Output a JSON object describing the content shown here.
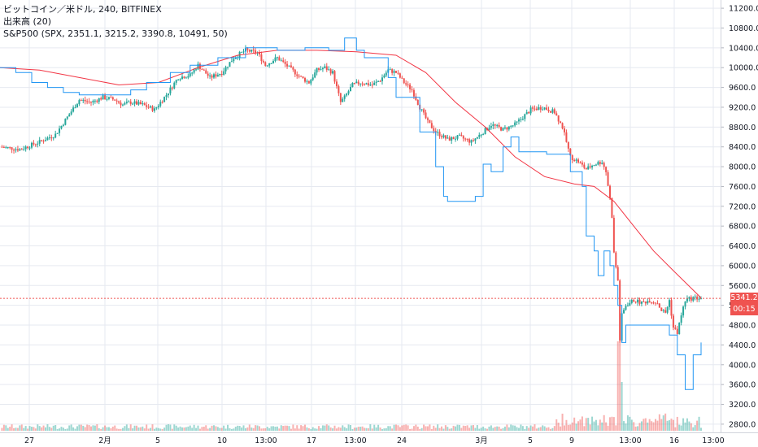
{
  "legend": {
    "symbol": "ビットコイン／米ドル, 240, BITFINEX",
    "volume": "出来高 (20)",
    "compare": "S&P500 (SPX, 2351.1, 3215.2, 3390.8, 10491, 50)"
  },
  "price_tag": {
    "value": "5341.2",
    "countdown": "00:15"
  },
  "colors": {
    "up": "#26a69a",
    "down": "#ef5350",
    "ma": "#f23645",
    "spx": "#2196f3",
    "grid": "#e6e9f0",
    "price_line": "#ef5350"
  },
  "chart_data": {
    "type": "candlestick",
    "y_axis": {
      "range": [
        2700,
        11300
      ],
      "ticks": [
        "2800.0",
        "3200.0",
        "3600.0",
        "4000.0",
        "4400.0",
        "4800.0",
        "5200.0",
        "5600.0",
        "6000.0",
        "6400.0",
        "6800.0",
        "7200.0",
        "7600.0",
        "8000.0",
        "8400.0",
        "8800.0",
        "9200.0",
        "9600.0",
        "10000.0",
        "10400.0",
        "10800.0",
        "11200.0"
      ]
    },
    "x_axis": {
      "ticks": [
        "27",
        "2月",
        "5",
        "10",
        "13:00",
        "17",
        "13:00",
        "24",
        "3月",
        "5",
        "9",
        "13:00",
        "16",
        "13:00"
      ]
    },
    "last_price": 5341.2,
    "btc_close_path": [
      [
        0,
        8400
      ],
      [
        10,
        8350
      ],
      [
        20,
        8500
      ],
      [
        28,
        8650
      ],
      [
        34,
        9000
      ],
      [
        40,
        9350
      ],
      [
        46,
        9300
      ],
      [
        52,
        9400
      ],
      [
        58,
        9350
      ],
      [
        62,
        9250
      ],
      [
        66,
        9300
      ],
      [
        72,
        9250
      ],
      [
        78,
        9150
      ],
      [
        84,
        9450
      ],
      [
        90,
        9800
      ],
      [
        96,
        9850
      ],
      [
        100,
        10050
      ],
      [
        106,
        9800
      ],
      [
        112,
        9900
      ],
      [
        118,
        10200
      ],
      [
        124,
        10350
      ],
      [
        130,
        10300
      ],
      [
        134,
        10050
      ],
      [
        140,
        10200
      ],
      [
        146,
        10000
      ],
      [
        152,
        9800
      ],
      [
        156,
        9700
      ],
      [
        160,
        9950
      ],
      [
        164,
        10000
      ],
      [
        168,
        9900
      ],
      [
        172,
        9300
      ],
      [
        174,
        9400
      ],
      [
        178,
        9650
      ],
      [
        182,
        9700
      ],
      [
        188,
        9650
      ],
      [
        192,
        9750
      ],
      [
        196,
        9950
      ],
      [
        200,
        9900
      ],
      [
        204,
        9700
      ],
      [
        208,
        9550
      ],
      [
        212,
        9200
      ],
      [
        216,
        8900
      ],
      [
        220,
        8700
      ],
      [
        226,
        8550
      ],
      [
        232,
        8600
      ],
      [
        238,
        8500
      ],
      [
        244,
        8700
      ],
      [
        248,
        8850
      ],
      [
        254,
        8750
      ],
      [
        260,
        8850
      ],
      [
        264,
        9000
      ],
      [
        268,
        9150
      ],
      [
        274,
        9200
      ],
      [
        280,
        9100
      ],
      [
        284,
        8800
      ],
      [
        288,
        8200
      ],
      [
        292,
        8100
      ],
      [
        296,
        7950
      ],
      [
        300,
        8050
      ],
      [
        304,
        8100
      ],
      [
        306,
        7900
      ],
      [
        308,
        7350
      ],
      [
        309,
        7000
      ],
      [
        310,
        6250
      ],
      [
        312,
        5700
      ],
      [
        313,
        4500
      ],
      [
        314,
        5000
      ],
      [
        316,
        5200
      ],
      [
        320,
        5300
      ],
      [
        324,
        5250
      ],
      [
        328,
        5300
      ],
      [
        332,
        5250
      ],
      [
        334,
        5100
      ],
      [
        336,
        5050
      ],
      [
        338,
        5300
      ],
      [
        340,
        4750
      ],
      [
        342,
        4650
      ],
      [
        344,
        5000
      ],
      [
        346,
        5300
      ],
      [
        350,
        5350
      ],
      [
        354,
        5341
      ]
    ],
    "ma_path": [
      [
        0,
        10000
      ],
      [
        20,
        9950
      ],
      [
        40,
        9800
      ],
      [
        60,
        9650
      ],
      [
        80,
        9700
      ],
      [
        100,
        10000
      ],
      [
        120,
        10250
      ],
      [
        140,
        10350
      ],
      [
        160,
        10350
      ],
      [
        180,
        10320
      ],
      [
        200,
        10250
      ],
      [
        215,
        9900
      ],
      [
        230,
        9300
      ],
      [
        245,
        8800
      ],
      [
        260,
        8200
      ],
      [
        275,
        7800
      ],
      [
        290,
        7650
      ],
      [
        300,
        7600
      ],
      [
        310,
        7300
      ],
      [
        320,
        6800
      ],
      [
        330,
        6300
      ],
      [
        340,
        5900
      ],
      [
        354,
        5350
      ]
    ],
    "spx_path": [
      [
        0,
        10000
      ],
      [
        8,
        10000
      ],
      [
        8,
        9900
      ],
      [
        16,
        9900
      ],
      [
        16,
        9700
      ],
      [
        24,
        9700
      ],
      [
        24,
        9600
      ],
      [
        32,
        9600
      ],
      [
        32,
        9500
      ],
      [
        40,
        9500
      ],
      [
        40,
        9450
      ],
      [
        48,
        9450
      ],
      [
        48,
        9450
      ],
      [
        60,
        9450
      ],
      [
        66,
        9450
      ],
      [
        66,
        9550
      ],
      [
        74,
        9550
      ],
      [
        74,
        9700
      ],
      [
        86,
        9700
      ],
      [
        86,
        9900
      ],
      [
        96,
        9900
      ],
      [
        96,
        10050
      ],
      [
        110,
        10050
      ],
      [
        110,
        10200
      ],
      [
        124,
        10200
      ],
      [
        124,
        10400
      ],
      [
        132,
        10400
      ],
      [
        132,
        10400
      ],
      [
        140,
        10400
      ],
      [
        140,
        10350
      ],
      [
        154,
        10350
      ],
      [
        154,
        10400
      ],
      [
        166,
        10400
      ],
      [
        166,
        10350
      ],
      [
        174,
        10350
      ],
      [
        174,
        10600
      ],
      [
        180,
        10600
      ],
      [
        180,
        10350
      ],
      [
        184,
        10350
      ],
      [
        184,
        10200
      ],
      [
        196,
        10200
      ],
      [
        196,
        9800
      ],
      [
        200,
        9800
      ],
      [
        200,
        9400
      ],
      [
        212,
        9400
      ],
      [
        212,
        8700
      ],
      [
        220,
        8700
      ],
      [
        220,
        8000
      ],
      [
        224,
        8000
      ],
      [
        224,
        7400
      ],
      [
        226,
        7400
      ],
      [
        226,
        7300
      ],
      [
        240,
        7300
      ],
      [
        240,
        7400
      ],
      [
        244,
        7400
      ],
      [
        244,
        8050
      ],
      [
        248,
        8050
      ],
      [
        248,
        7900
      ],
      [
        254,
        7900
      ],
      [
        254,
        8400
      ],
      [
        258,
        8400
      ],
      [
        258,
        8600
      ],
      [
        262,
        8600
      ],
      [
        262,
        8300
      ],
      [
        276,
        8300
      ],
      [
        276,
        8250
      ],
      [
        288,
        8250
      ],
      [
        288,
        7900
      ],
      [
        294,
        7900
      ],
      [
        294,
        7600
      ],
      [
        296,
        7600
      ],
      [
        296,
        6600
      ],
      [
        300,
        6600
      ],
      [
        300,
        6300
      ],
      [
        302,
        6300
      ],
      [
        302,
        5800
      ],
      [
        305,
        5800
      ],
      [
        305,
        6300
      ],
      [
        308,
        6300
      ],
      [
        308,
        6000
      ],
      [
        310,
        6000
      ],
      [
        310,
        5600
      ],
      [
        312,
        5600
      ],
      [
        312,
        5200
      ],
      [
        314,
        5200
      ],
      [
        314,
        4450
      ],
      [
        316,
        4450
      ],
      [
        316,
        4800
      ],
      [
        320,
        4800
      ],
      [
        320,
        4800
      ],
      [
        330,
        4800
      ],
      [
        330,
        4800
      ],
      [
        338,
        4800
      ],
      [
        338,
        4600
      ],
      [
        342,
        4600
      ],
      [
        342,
        4200
      ],
      [
        346,
        4200
      ],
      [
        346,
        3500
      ],
      [
        350,
        3500
      ],
      [
        350,
        4200
      ],
      [
        354,
        4200
      ],
      [
        354,
        4450
      ]
    ]
  }
}
